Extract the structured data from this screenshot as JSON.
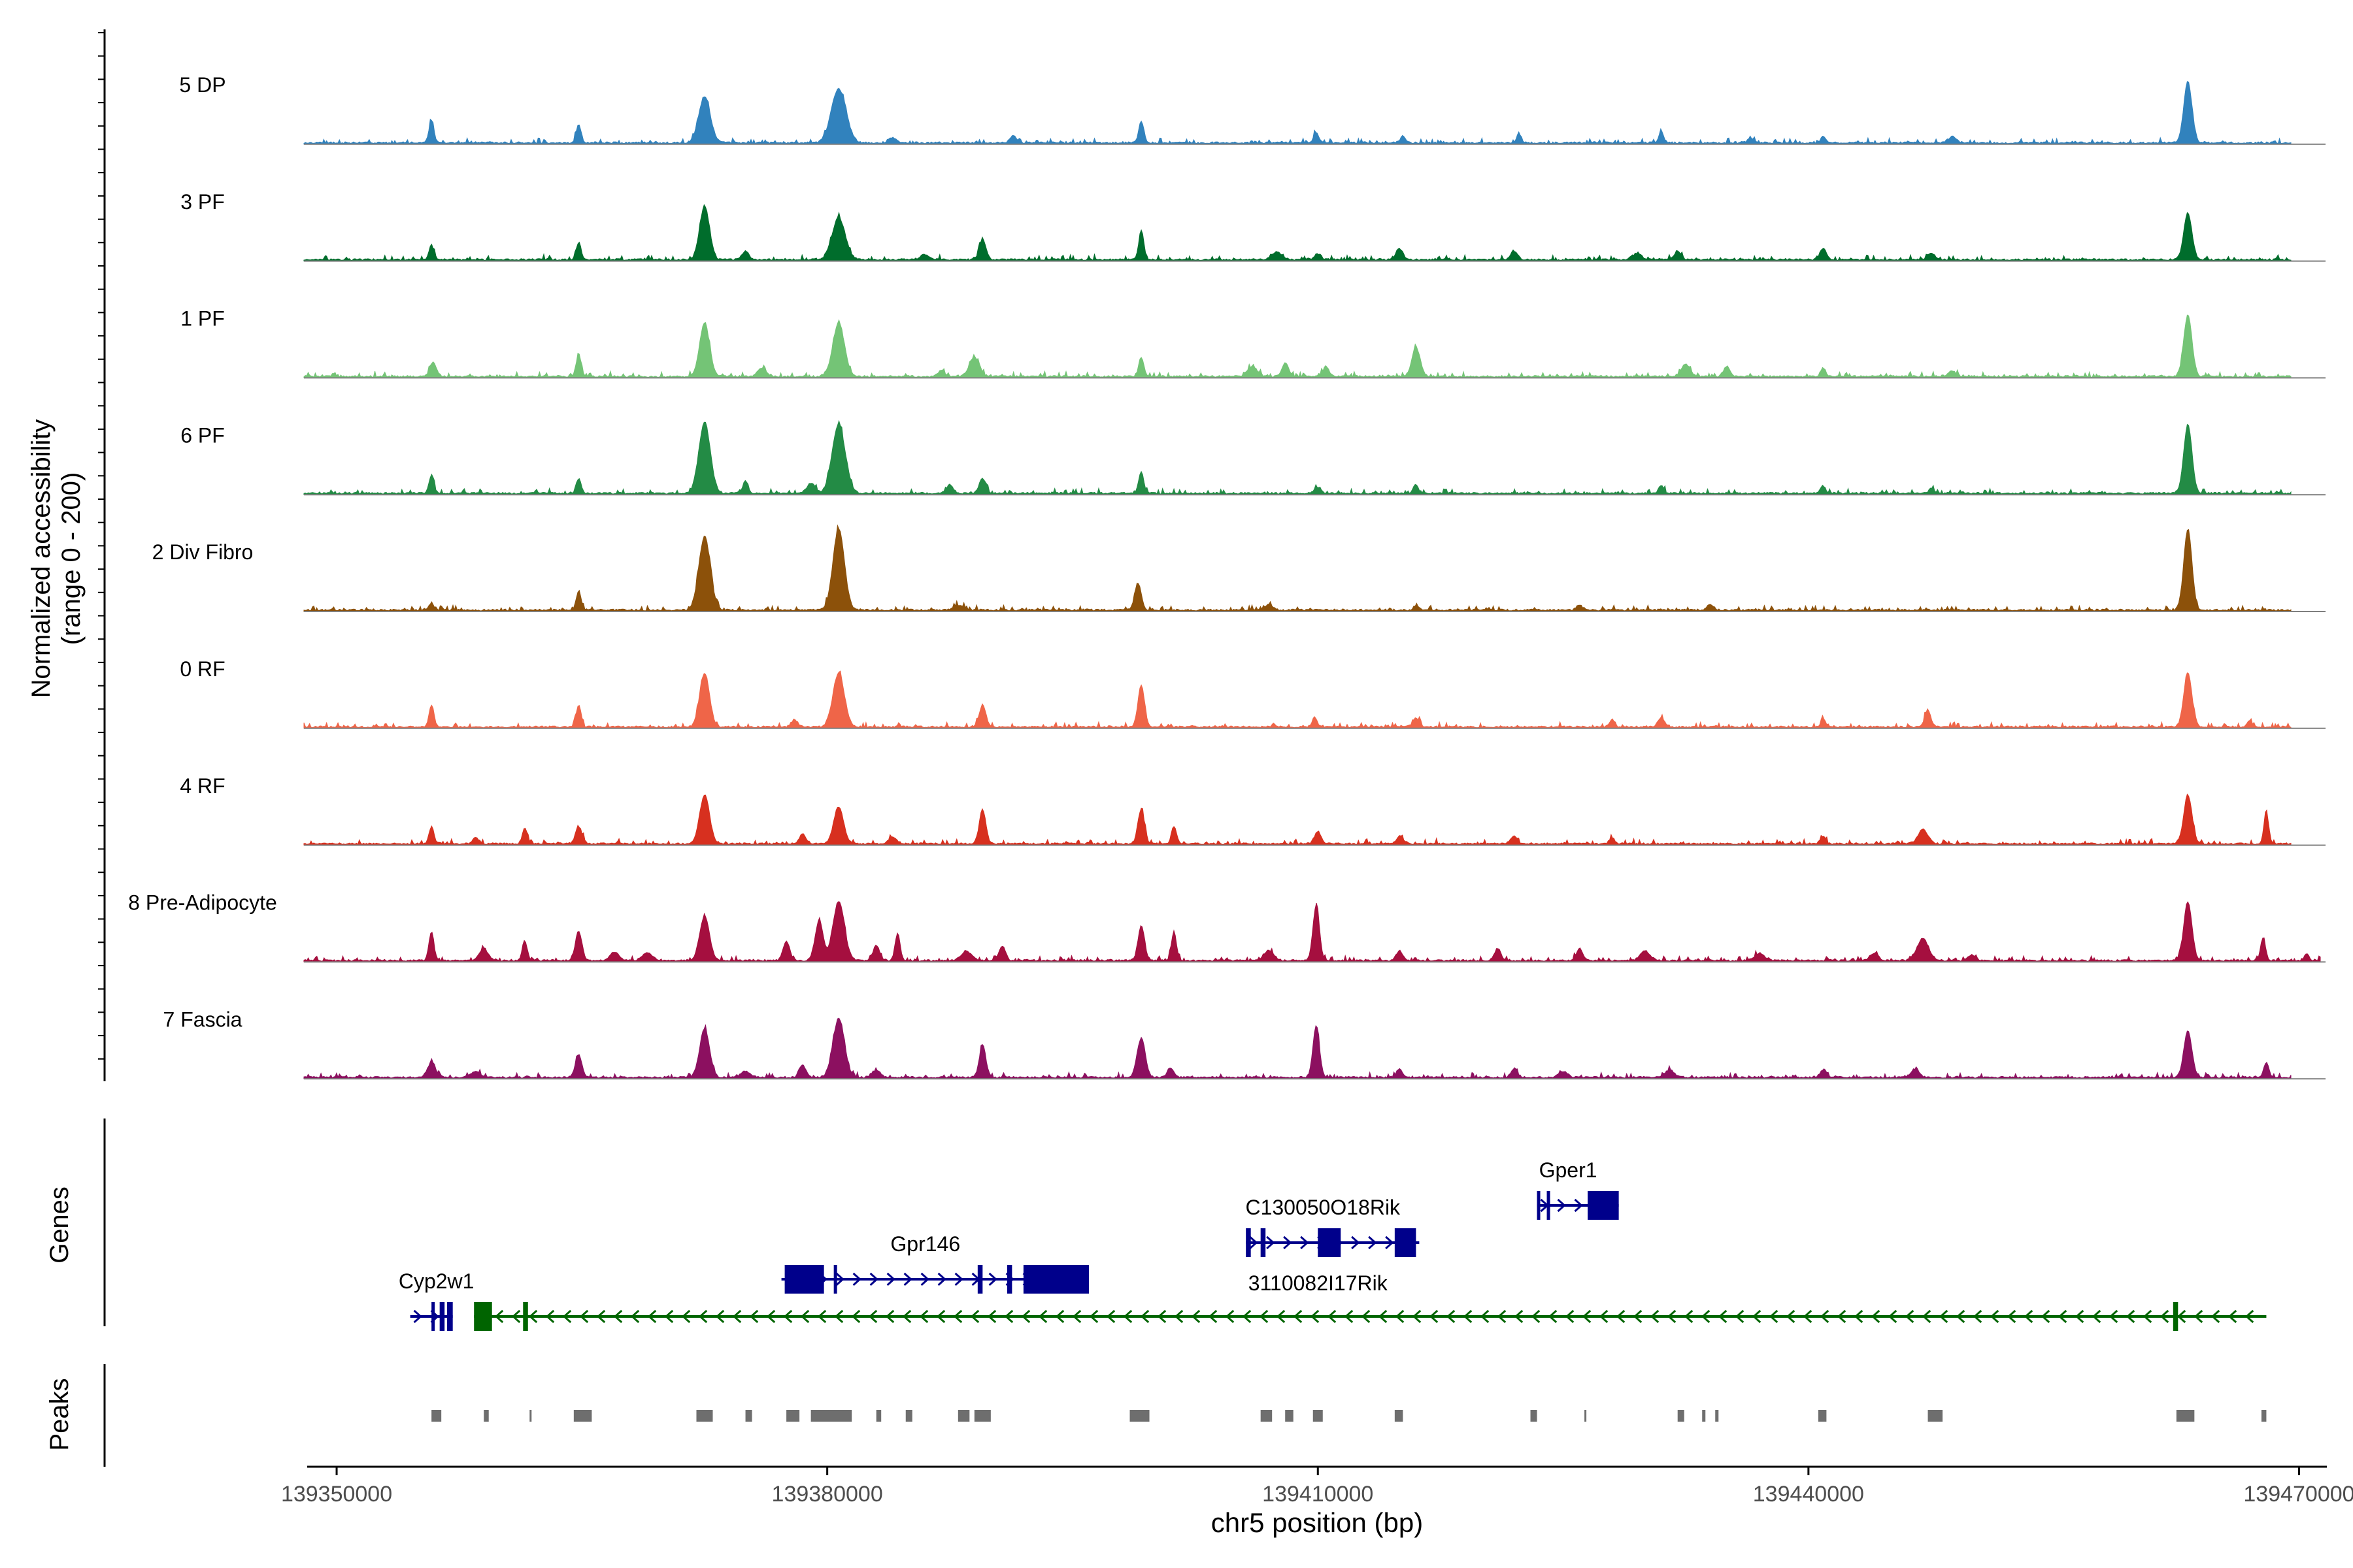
{
  "chart_data": {
    "type": "area",
    "title": "",
    "ylabel_line1": "Normalized accessibility",
    "ylabel_line2": "(range 0 - 200)",
    "ylim": [
      0,
      200
    ],
    "xlabel": "chr5 position (bp)",
    "xlim": [
      139348000,
      139471500
    ],
    "x_ticks": [
      139350000,
      139380000,
      139410000,
      139440000,
      139470000
    ],
    "x_tick_labels": [
      "139350000",
      "139380000",
      "139410000",
      "139440000",
      "139470000"
    ],
    "genes_label": "Genes",
    "peaks_label": "Peaks",
    "tracks": [
      {
        "name": "5 DP",
        "color": "#3182bd",
        "end": 139469500,
        "peaks": [
          [
            139355800,
            45,
            150
          ],
          [
            139364800,
            38,
            150
          ],
          [
            139372500,
            95,
            350
          ],
          [
            139380700,
            110,
            450
          ],
          [
            139384000,
            10,
            250
          ],
          [
            139391400,
            14,
            200
          ],
          [
            139399200,
            45,
            150
          ],
          [
            139409900,
            22,
            150
          ],
          [
            139415200,
            15,
            150
          ],
          [
            139422300,
            18,
            150
          ],
          [
            139431000,
            22,
            150
          ],
          [
            139436500,
            10,
            200
          ],
          [
            139440900,
            12,
            150
          ],
          [
            139448800,
            12,
            250
          ],
          [
            139463200,
            125,
            250
          ]
        ]
      },
      {
        "name": "3 PF",
        "color": "#006d2c",
        "end": 139469500,
        "peaks": [
          [
            139355800,
            30,
            150
          ],
          [
            139364800,
            35,
            150
          ],
          [
            139372500,
            110,
            300
          ],
          [
            139375000,
            18,
            200
          ],
          [
            139380700,
            85,
            400
          ],
          [
            139386000,
            10,
            300
          ],
          [
            139389500,
            40,
            200
          ],
          [
            139399200,
            60,
            150
          ],
          [
            139407500,
            15,
            300
          ],
          [
            139410000,
            12,
            200
          ],
          [
            139415000,
            22,
            200
          ],
          [
            139422000,
            18,
            200
          ],
          [
            139429500,
            12,
            300
          ],
          [
            139432000,
            18,
            200
          ],
          [
            139440900,
            22,
            200
          ],
          [
            139447500,
            12,
            250
          ],
          [
            139463200,
            95,
            250
          ]
        ]
      },
      {
        "name": "1 PF",
        "color": "#74c476",
        "end": 139469500,
        "peaks": [
          [
            139355900,
            30,
            200
          ],
          [
            139364800,
            45,
            150
          ],
          [
            139372500,
            110,
            300
          ],
          [
            139376000,
            18,
            250
          ],
          [
            139380700,
            110,
            350
          ],
          [
            139389000,
            40,
            300
          ],
          [
            139387000,
            12,
            200
          ],
          [
            139399200,
            40,
            150
          ],
          [
            139406000,
            20,
            300
          ],
          [
            139408000,
            28,
            200
          ],
          [
            139410500,
            18,
            200
          ],
          [
            139416000,
            60,
            250
          ],
          [
            139432500,
            25,
            250
          ],
          [
            139435000,
            20,
            200
          ],
          [
            139440900,
            18,
            150
          ],
          [
            139448800,
            12,
            200
          ],
          [
            139463200,
            125,
            250
          ]
        ]
      },
      {
        "name": "6 PF",
        "color": "#238b45",
        "end": 139469500,
        "peaks": [
          [
            139355800,
            38,
            150
          ],
          [
            139364800,
            30,
            150
          ],
          [
            139372500,
            145,
            350
          ],
          [
            139375000,
            25,
            150
          ],
          [
            139379000,
            20,
            250
          ],
          [
            139380700,
            140,
            400
          ],
          [
            139387500,
            18,
            200
          ],
          [
            139389500,
            30,
            200
          ],
          [
            139399200,
            45,
            150
          ],
          [
            139410000,
            12,
            200
          ],
          [
            139416000,
            18,
            150
          ],
          [
            139431000,
            16,
            150
          ],
          [
            139440900,
            15,
            150
          ],
          [
            139447500,
            10,
            150
          ],
          [
            139463200,
            140,
            250
          ]
        ]
      },
      {
        "name": "2 Div Fibro",
        "color": "#8c510a",
        "end": 139469500,
        "peaks": [
          [
            139355800,
            15,
            150
          ],
          [
            139364800,
            40,
            150
          ],
          [
            139372500,
            150,
            350
          ],
          [
            139380700,
            165,
            350
          ],
          [
            139388000,
            10,
            300
          ],
          [
            139399000,
            55,
            200
          ],
          [
            139407000,
            10,
            250
          ],
          [
            139416000,
            10,
            150
          ],
          [
            139426000,
            10,
            200
          ],
          [
            139434000,
            12,
            200
          ],
          [
            139463200,
            165,
            250
          ]
        ]
      },
      {
        "name": "0 RF",
        "color": "#ef6548",
        "end": 139469500,
        "peaks": [
          [
            139355800,
            45,
            150
          ],
          [
            139364800,
            45,
            150
          ],
          [
            139372500,
            110,
            300
          ],
          [
            139378000,
            15,
            200
          ],
          [
            139380700,
            110,
            350
          ],
          [
            139389500,
            45,
            200
          ],
          [
            139399200,
            85,
            200
          ],
          [
            139409800,
            20,
            150
          ],
          [
            139416000,
            18,
            200
          ],
          [
            139428000,
            15,
            150
          ],
          [
            139431000,
            18,
            200
          ],
          [
            139440900,
            15,
            150
          ],
          [
            139447300,
            35,
            180
          ],
          [
            139463200,
            110,
            250
          ],
          [
            139467000,
            12,
            150
          ]
        ]
      },
      {
        "name": "4 RF",
        "color": "#d7301f",
        "end": 139469500,
        "peaks": [
          [
            139355800,
            35,
            150
          ],
          [
            139358500,
            12,
            200
          ],
          [
            139361500,
            30,
            150
          ],
          [
            139364800,
            35,
            200
          ],
          [
            139372500,
            100,
            300
          ],
          [
            139378500,
            20,
            200
          ],
          [
            139380700,
            75,
            300
          ],
          [
            139384000,
            12,
            250
          ],
          [
            139389500,
            70,
            200
          ],
          [
            139399200,
            70,
            200
          ],
          [
            139401200,
            35,
            150
          ],
          [
            139410000,
            25,
            200
          ],
          [
            139415000,
            15,
            200
          ],
          [
            139422000,
            15,
            200
          ],
          [
            139428000,
            12,
            150
          ],
          [
            139440900,
            15,
            150
          ],
          [
            139447000,
            30,
            300
          ],
          [
            139463200,
            100,
            250
          ],
          [
            139468000,
            60,
            150
          ]
        ]
      },
      {
        "name": "8 Pre-Adipocyte",
        "color": "#a50f3f",
        "end": 139471300,
        "peaks": [
          [
            139355800,
            60,
            150
          ],
          [
            139359000,
            25,
            250
          ],
          [
            139361500,
            40,
            150
          ],
          [
            139364800,
            60,
            200
          ],
          [
            139367000,
            18,
            250
          ],
          [
            139369000,
            15,
            300
          ],
          [
            139372500,
            90,
            300
          ],
          [
            139377500,
            40,
            200
          ],
          [
            139379500,
            80,
            250
          ],
          [
            139380700,
            120,
            350
          ],
          [
            139383000,
            30,
            200
          ],
          [
            139384300,
            55,
            150
          ],
          [
            139388500,
            20,
            300
          ],
          [
            139390700,
            30,
            200
          ],
          [
            139399200,
            70,
            200
          ],
          [
            139401200,
            60,
            150
          ],
          [
            139407000,
            20,
            300
          ],
          [
            139409900,
            110,
            200
          ],
          [
            139415000,
            20,
            200
          ],
          [
            139421000,
            25,
            200
          ],
          [
            139426000,
            25,
            200
          ],
          [
            139430000,
            20,
            300
          ],
          [
            139437000,
            15,
            300
          ],
          [
            139444000,
            15,
            250
          ],
          [
            139447000,
            45,
            350
          ],
          [
            139450000,
            12,
            200
          ],
          [
            139463200,
            120,
            250
          ],
          [
            139467800,
            45,
            150
          ],
          [
            139470500,
            15,
            120
          ]
        ]
      },
      {
        "name": "7 Fascia",
        "color": "#8c1060",
        "end": 139469500,
        "peaks": [
          [
            139355800,
            30,
            250
          ],
          [
            139358500,
            12,
            300
          ],
          [
            139364800,
            45,
            200
          ],
          [
            139372500,
            100,
            300
          ],
          [
            139375000,
            12,
            300
          ],
          [
            139378500,
            25,
            200
          ],
          [
            139380700,
            120,
            350
          ],
          [
            139383000,
            15,
            250
          ],
          [
            139389500,
            65,
            200
          ],
          [
            139399200,
            80,
            250
          ],
          [
            139401000,
            20,
            200
          ],
          [
            139409900,
            105,
            200
          ],
          [
            139415000,
            15,
            200
          ],
          [
            139422000,
            18,
            200
          ],
          [
            139425000,
            12,
            250
          ],
          [
            139431500,
            15,
            300
          ],
          [
            139440900,
            15,
            200
          ],
          [
            139446500,
            15,
            250
          ],
          [
            139463200,
            95,
            250
          ],
          [
            139468000,
            30,
            150
          ]
        ]
      }
    ],
    "genes": [
      {
        "name": "Cyp2w1",
        "strand": "+",
        "color": "#00008b",
        "row": 3,
        "label_x": 139356100,
        "label_row": 3,
        "line": [
          139354500,
          139357100
        ],
        "exons": [
          [
            139355800,
            139356000
          ],
          [
            139356300,
            139356600
          ],
          [
            139356750,
            139357100
          ]
        ]
      },
      {
        "name": "3110082I17Rik",
        "strand": "-",
        "color": "#006400",
        "row": 3,
        "label_x": 139410000,
        "label_row": 2.5,
        "line": [
          139358400,
          139468000
        ],
        "exons": [
          [
            139358400,
            139359500
          ],
          [
            139361400,
            139361700
          ],
          [
            139462300,
            139462600
          ]
        ]
      },
      {
        "name": "Gpr146",
        "strand": "+",
        "color": "#00008b",
        "row": 2,
        "label_x": 139386000,
        "label_row": 2,
        "line": [
          139377200,
          139394500
        ],
        "exons": [
          [
            139377400,
            139379800
          ],
          [
            139380400,
            139380600
          ],
          [
            139389200,
            139389500
          ],
          [
            139391000,
            139391300
          ],
          [
            139392000,
            139396000
          ]
        ]
      },
      {
        "name": "C130050O18Rik",
        "strand": "+",
        "color": "#00008b",
        "row": 1,
        "label_x": 139410300,
        "label_row": 1,
        "line": [
          139405600,
          139416200
        ],
        "exons": [
          [
            139405600,
            139405900
          ],
          [
            139406500,
            139406800
          ],
          [
            139410000,
            139411400
          ],
          [
            139414700,
            139416000
          ]
        ]
      },
      {
        "name": "Gper1",
        "strand": "+",
        "color": "#00008b",
        "row": 0,
        "label_x": 139425300,
        "label_row": 0,
        "line": [
          139423400,
          139428400
        ],
        "exons": [
          [
            139423400,
            139423600
          ],
          [
            139424000,
            139424200
          ],
          [
            139426500,
            139428400
          ]
        ]
      }
    ],
    "peak_regions": [
      [
        139355800,
        139356400
      ],
      [
        139359000,
        139359300
      ],
      [
        139361800,
        139361900
      ],
      [
        139364500,
        139365600
      ],
      [
        139372000,
        139373000
      ],
      [
        139375000,
        139375400
      ],
      [
        139377500,
        139378300
      ],
      [
        139379000,
        139381500
      ],
      [
        139383000,
        139383300
      ],
      [
        139384800,
        139385200
      ],
      [
        139388000,
        139388700
      ],
      [
        139389000,
        139390000
      ],
      [
        139398500,
        139399700
      ],
      [
        139406500,
        139407200
      ],
      [
        139408000,
        139408500
      ],
      [
        139409700,
        139410300
      ],
      [
        139414700,
        139415200
      ],
      [
        139423000,
        139423400
      ],
      [
        139426300,
        139426400
      ],
      [
        139432000,
        139432400
      ],
      [
        139433500,
        139433700
      ],
      [
        139434300,
        139434500
      ],
      [
        139440600,
        139441100
      ],
      [
        139447300,
        139448200
      ],
      [
        139462500,
        139463600
      ],
      [
        139467700,
        139468000
      ]
    ]
  }
}
